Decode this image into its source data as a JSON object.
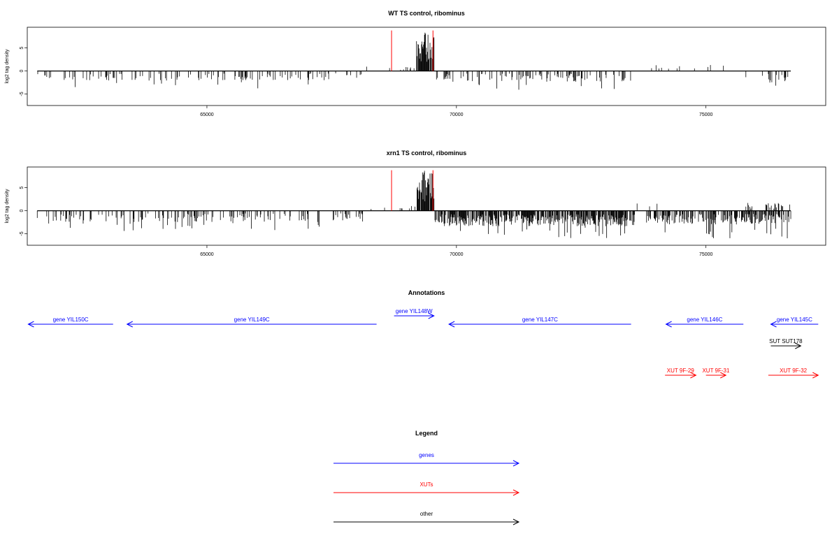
{
  "panels": [
    {
      "title": "WT TS control, ribominus",
      "ylabel": "log2 tag density",
      "yticks": [
        -5,
        0,
        5
      ],
      "ylim": [
        -7.5,
        9.5
      ],
      "xticks": [
        65000,
        70000,
        75000
      ],
      "xlim": [
        61400,
        77400
      ],
      "data_range": [
        61600,
        76700
      ]
    },
    {
      "title": "xrn1 TS control, ribominus",
      "ylabel": "log2 tag density",
      "yticks": [
        -5,
        0,
        5
      ],
      "ylim": [
        -7.5,
        9.5
      ],
      "xticks": [
        65000,
        70000,
        75000
      ],
      "xlim": [
        61400,
        77400
      ],
      "data_range": [
        61600,
        76700
      ]
    }
  ],
  "annotations": {
    "title": "Annotations",
    "features": [
      {
        "label": "gene YIL150C",
        "type": "gene",
        "start": 61420,
        "end": 63120,
        "strand": "-",
        "row": 0
      },
      {
        "label": "gene YIL149C",
        "type": "gene",
        "start": 63400,
        "end": 68400,
        "strand": "-",
        "row": 0
      },
      {
        "label": "gene YIL148W",
        "type": "gene",
        "start": 68750,
        "end": 69550,
        "strand": "+",
        "row": -1
      },
      {
        "label": "gene YIL147C",
        "type": "gene",
        "start": 69850,
        "end": 73500,
        "strand": "-",
        "row": 0
      },
      {
        "label": "gene YIL146C",
        "type": "gene",
        "start": 74200,
        "end": 75750,
        "strand": "-",
        "row": 0
      },
      {
        "label": "gene YIL145C",
        "type": "gene",
        "start": 76300,
        "end": 77250,
        "strand": "-",
        "row": 0
      },
      {
        "label": "SUT SUT178",
        "type": "other",
        "start": 76300,
        "end": 76900,
        "strand": "+",
        "row": 1
      },
      {
        "label": "XUT 9F-29",
        "type": "XUT",
        "start": 74180,
        "end": 74800,
        "strand": "+",
        "row": 2
      },
      {
        "label": "XUT 9F-31",
        "type": "XUT",
        "start": 75000,
        "end": 75400,
        "strand": "+",
        "row": 2
      },
      {
        "label": "XUT 9F-32",
        "type": "XUT",
        "start": 76250,
        "end": 77250,
        "strand": "+",
        "row": 2
      }
    ]
  },
  "legend": {
    "title": "Legend",
    "items": [
      {
        "label": "genes",
        "color": "#0000ff"
      },
      {
        "label": "XUTs",
        "color": "#ff0000"
      },
      {
        "label": "other",
        "color": "#000000"
      }
    ]
  },
  "colors": {
    "gene": "#0000ff",
    "XUT": "#ff0000",
    "other": "#000000",
    "highlight": "#ff0000",
    "bars": "#000000"
  },
  "chart_data": [
    {
      "type": "bar",
      "title": "WT TS control, ribominus",
      "xlabel": "",
      "ylabel": "log2 tag density",
      "xlim": [
        61400,
        77400
      ],
      "ylim": [
        -7.5,
        9.5
      ],
      "grid": false,
      "highlight_lines": [
        {
          "x": 68700,
          "y": 8.8
        },
        {
          "x": 69530,
          "y": 8.8
        }
      ],
      "profile": [
        {
          "from": 61600,
          "to": 68130,
          "sign": -1,
          "mean": 1.6,
          "peak": 4.0,
          "density": 0.16
        },
        {
          "from": 68200,
          "to": 68700,
          "sign": 1,
          "mean": 0.8,
          "peak": 1.5,
          "density": 0.04
        },
        {
          "from": 68700,
          "to": 69200,
          "sign": 1,
          "mean": 0.7,
          "peak": 1.8,
          "density": 0.05
        },
        {
          "from": 69200,
          "to": 69550,
          "sign": 1,
          "mean": 6.5,
          "peak": 8.8,
          "density": 0.9
        },
        {
          "from": 69560,
          "to": 73570,
          "sign": -1,
          "mean": 1.8,
          "peak": 4.8,
          "density": 0.2
        },
        {
          "from": 73600,
          "to": 75800,
          "sign": 1,
          "mean": 1.0,
          "peak": 2.3,
          "density": 0.03
        },
        {
          "from": 75800,
          "to": 76250,
          "sign": -1,
          "mean": 1.2,
          "peak": 2.5,
          "density": 0.05
        },
        {
          "from": 76250,
          "to": 76700,
          "sign": -1,
          "mean": 2.0,
          "peak": 3.6,
          "density": 0.35
        }
      ]
    },
    {
      "type": "bar",
      "title": "xrn1 TS control, ribominus",
      "xlabel": "",
      "ylabel": "log2 tag density",
      "xlim": [
        61400,
        77400
      ],
      "ylim": [
        -7.5,
        9.5
      ],
      "grid": false,
      "highlight_lines": [
        {
          "x": 68700,
          "y": 8.8
        },
        {
          "x": 69530,
          "y": 8.8
        }
      ],
      "profile": [
        {
          "from": 61600,
          "to": 68130,
          "sign": -1,
          "mean": 1.9,
          "peak": 4.4,
          "density": 0.22
        },
        {
          "from": 68200,
          "to": 68700,
          "sign": 1,
          "mean": 0.6,
          "peak": 1.5,
          "density": 0.05
        },
        {
          "from": 68700,
          "to": 69200,
          "sign": 1,
          "mean": 0.9,
          "peak": 2.5,
          "density": 0.08
        },
        {
          "from": 69200,
          "to": 69550,
          "sign": 1,
          "mean": 6.8,
          "peak": 8.9,
          "density": 0.95
        },
        {
          "from": 69560,
          "to": 73570,
          "sign": -1,
          "mean": 2.6,
          "peak": 6.0,
          "density": 0.7
        },
        {
          "from": 73600,
          "to": 74200,
          "sign": 1,
          "mean": 1.3,
          "peak": 2.0,
          "density": 0.06
        },
        {
          "from": 73800,
          "to": 76700,
          "sign": -1,
          "mean": 2.3,
          "peak": 6.3,
          "density": 0.55
        },
        {
          "from": 75800,
          "to": 76700,
          "sign": 1,
          "mean": 1.4,
          "peak": 2.8,
          "density": 0.2
        }
      ]
    }
  ]
}
